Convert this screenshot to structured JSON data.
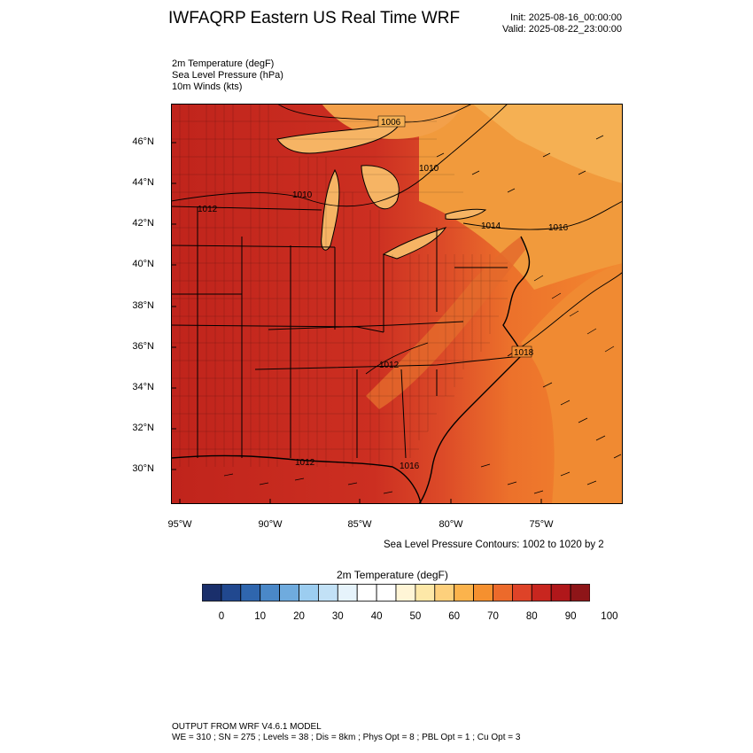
{
  "header": {
    "title": "IWFAQRP Eastern US Real Time WRF",
    "init": "Init: 2025-08-16_00:00:00",
    "valid": "Valid: 2025-08-22_23:00:00"
  },
  "fields": [
    "2m Temperature   (degF)",
    "Sea Level Pressure   (hPa)",
    "10m Winds   (kts)"
  ],
  "map": {
    "lat_labels": [
      "46°N",
      "44°N",
      "42°N",
      "40°N",
      "38°N",
      "36°N",
      "34°N",
      "32°N",
      "30°N"
    ],
    "lon_labels": [
      "95°W",
      "90°W",
      "85°W",
      "80°W",
      "75°W"
    ],
    "pressure_labels": [
      "1006",
      "1010",
      "1010",
      "1012",
      "1014",
      "1016",
      "1018",
      "1012",
      "1012",
      "1016"
    ],
    "colors": {
      "hot_inland": "#c8281e",
      "warm": "#e0482a",
      "coastal": "#f07d2a",
      "north": "#f4a34a",
      "cool_lakes": "#f9c77a",
      "state_lines": "#000000"
    }
  },
  "contour_note": "Sea Level Pressure Contours: 1002 to 1020 by 2",
  "colorbar": {
    "title": "2m Temperature  (degF)",
    "ticks": [
      "0",
      "10",
      "20",
      "30",
      "40",
      "50",
      "60",
      "70",
      "80",
      "90",
      "100"
    ],
    "colors": [
      "#1a2f6b",
      "#21488f",
      "#2f66ae",
      "#4a88c8",
      "#6fabde",
      "#9ccdf0",
      "#c2e1f6",
      "#e6f3fb",
      "#ffffff",
      "#ffffff",
      "#fff5d6",
      "#fde8a8",
      "#fdd07c",
      "#fbb34c",
      "#f5902f",
      "#ec6a2b",
      "#de4328",
      "#c8261f",
      "#b0171a",
      "#8e1518"
    ]
  },
  "footer": {
    "line1": "OUTPUT FROM WRF V4.6.1 MODEL",
    "line2": "WE = 310 ; SN = 275 ; Levels = 38 ; Dis = 8km ; Phys Opt = 8 ; PBL Opt = 1 ; Cu Opt = 3"
  }
}
